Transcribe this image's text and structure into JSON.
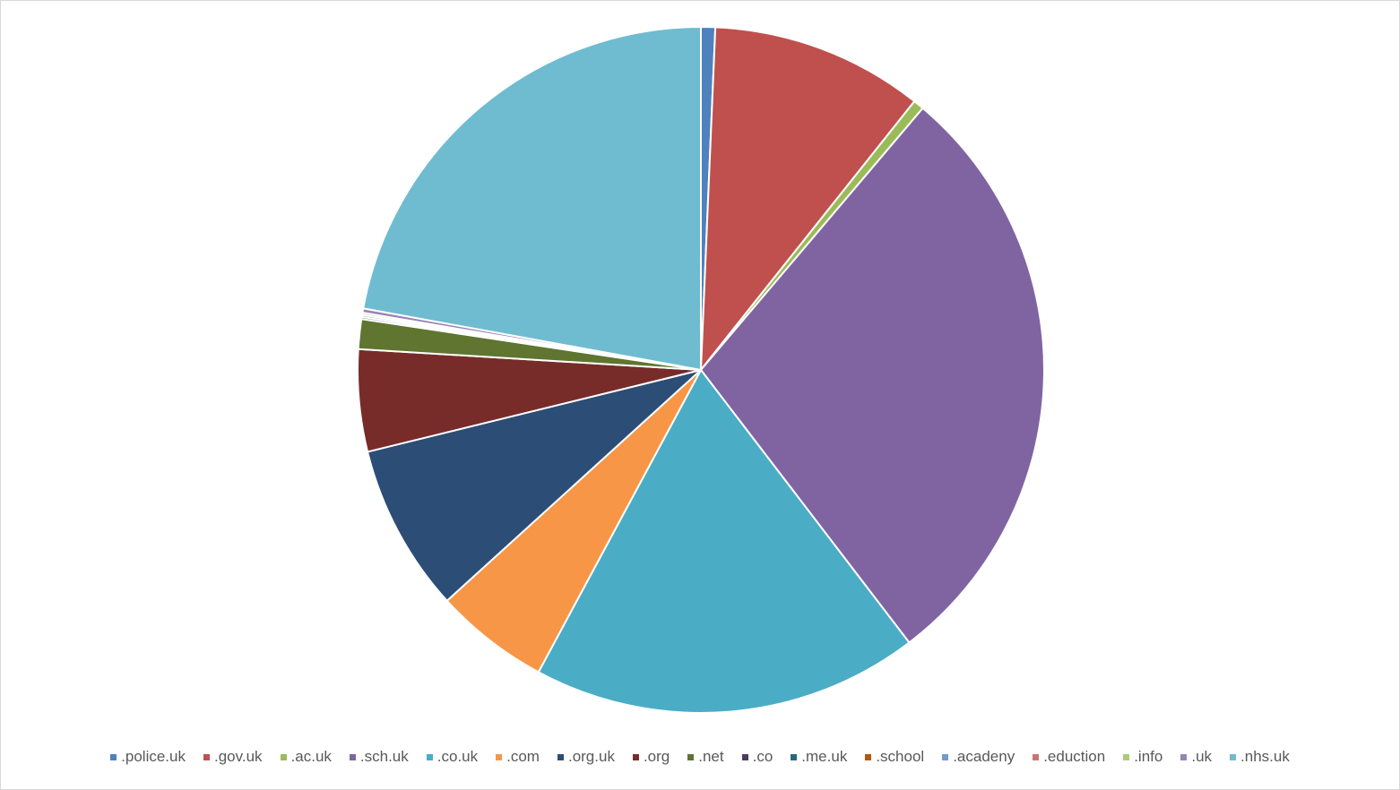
{
  "chart_data": {
    "type": "pie",
    "categories": [
      ".police.uk",
      ".gov.uk",
      ".ac.uk",
      ".sch.uk",
      ".co.uk",
      ".com",
      ".org.uk",
      ".org",
      ".net",
      ".co",
      ".me.uk",
      ".school",
      ".acadeny",
      ".eduction",
      ".info",
      ".uk",
      ".nhs.uk"
    ],
    "values": [
      0.67,
      10,
      0.5,
      28.4,
      18.2,
      5.4,
      7.9,
      4.8,
      1.4,
      0.1,
      0.1,
      0,
      0,
      0,
      0.1,
      0.2,
      22.1
    ],
    "colors": [
      "#4f81bd",
      "#c0504d",
      "#9bbb59",
      "#8064a2",
      "#4bacc6",
      "#f79646",
      "#2c4d75",
      "#772c2a",
      "#5f7530",
      "#4d3b62",
      "#276a7c",
      "#b65708",
      "#729aca",
      "#cd7371",
      "#afc97a",
      "#9983b5",
      "#6fbcd1"
    ],
    "legend": "bottom"
  }
}
